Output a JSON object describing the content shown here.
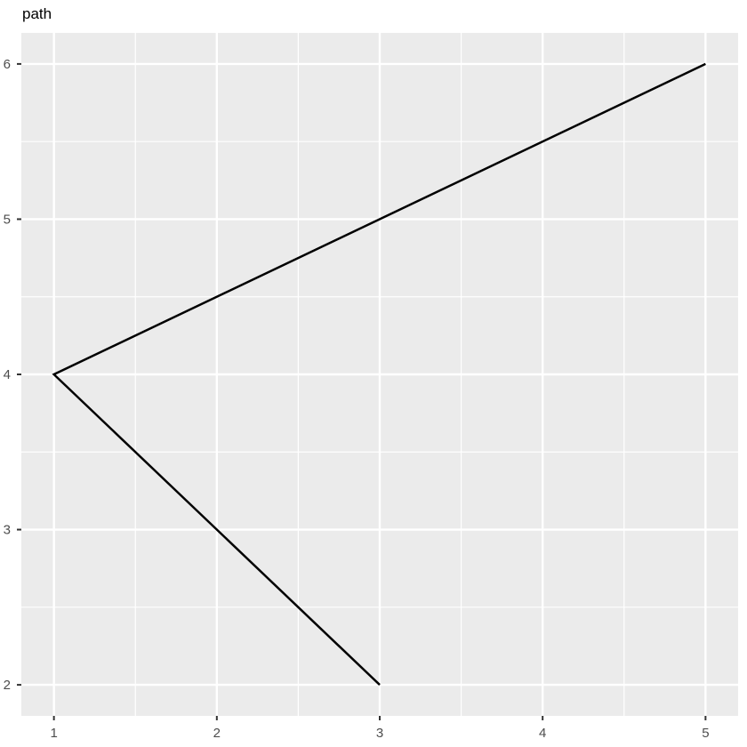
{
  "chart_data": {
    "type": "line",
    "title": "path",
    "subtitle": "",
    "xlabel": "",
    "ylabel": "",
    "series": [
      {
        "name": "path",
        "x": [
          3,
          1,
          5
        ],
        "y": [
          2,
          4,
          6
        ],
        "color": "#000000",
        "stroke_width": 2.5
      }
    ],
    "xlim": [
      0.8,
      5.2
    ],
    "ylim": [
      1.8,
      6.2
    ],
    "x_major_ticks": [
      1,
      2,
      3,
      4,
      5
    ],
    "y_major_ticks": [
      2,
      3,
      4,
      5,
      6
    ],
    "x_minor_ticks": [
      1.5,
      2.5,
      3.5,
      4.5
    ],
    "y_minor_ticks": [
      2.5,
      3.5,
      4.5,
      5.5
    ],
    "grid": "on",
    "legend_position": "none",
    "panel_bg_color": "#EBEBEB",
    "grid_color": "#FFFFFF",
    "tick_mark_color": "#333333",
    "tick_label_color": "#4D4D4D",
    "title_color": "#000000"
  }
}
